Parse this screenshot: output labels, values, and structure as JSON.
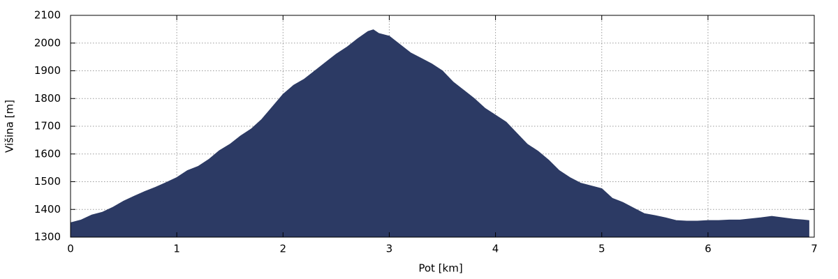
{
  "chart_data": {
    "type": "area",
    "x_label": "Pot [km]",
    "y_label": "Višina [m]",
    "color": "#2c3a64",
    "x": [
      0,
      0.1,
      0.2,
      0.3,
      0.4,
      0.5,
      0.6,
      0.7,
      0.8,
      0.9,
      1.0,
      1.1,
      1.2,
      1.3,
      1.4,
      1.5,
      1.6,
      1.7,
      1.8,
      1.9,
      2.0,
      2.1,
      2.2,
      2.3,
      2.4,
      2.5,
      2.6,
      2.7,
      2.8,
      2.85,
      2.9,
      3.0,
      3.1,
      3.2,
      3.3,
      3.4,
      3.5,
      3.6,
      3.7,
      3.8,
      3.9,
      4.0,
      4.1,
      4.2,
      4.3,
      4.4,
      4.5,
      4.6,
      4.7,
      4.8,
      4.9,
      5.0,
      5.1,
      5.2,
      5.3,
      5.4,
      5.5,
      5.6,
      5.7,
      5.8,
      5.9,
      6.0,
      6.1,
      6.2,
      6.3,
      6.4,
      6.5,
      6.6,
      6.7,
      6.8,
      6.9,
      6.95
    ],
    "values": [
      1352,
      1362,
      1380,
      1390,
      1408,
      1430,
      1448,
      1465,
      1480,
      1497,
      1515,
      1540,
      1555,
      1580,
      1612,
      1635,
      1665,
      1690,
      1725,
      1770,
      1815,
      1848,
      1870,
      1900,
      1930,
      1960,
      1985,
      2015,
      2042,
      2048,
      2035,
      2025,
      1995,
      1965,
      1945,
      1925,
      1900,
      1860,
      1830,
      1800,
      1765,
      1740,
      1715,
      1675,
      1635,
      1610,
      1578,
      1540,
      1515,
      1495,
      1485,
      1475,
      1440,
      1425,
      1405,
      1385,
      1378,
      1370,
      1360,
      1358,
      1358,
      1360,
      1360,
      1362,
      1362,
      1366,
      1370,
      1375,
      1370,
      1365,
      1362,
      1360
    ],
    "xlim": [
      0,
      7
    ],
    "xticks": [
      0,
      1,
      2,
      3,
      4,
      5,
      6,
      7
    ],
    "ylim": [
      1300,
      2100
    ],
    "yticks": [
      1300,
      1400,
      1500,
      1600,
      1700,
      1800,
      1900,
      2000,
      2100
    ],
    "grid": true
  }
}
